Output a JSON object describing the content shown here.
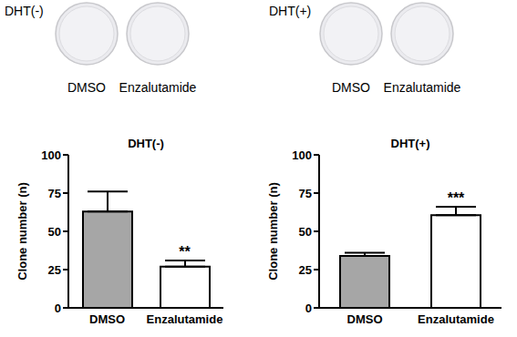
{
  "images": [
    {
      "label": "DHT(-)",
      "dishes": [
        "DMSO",
        "Enzalutamide"
      ]
    },
    {
      "label": "DHT(+)",
      "dishes": [
        "DMSO",
        "Enzalutamide"
      ]
    }
  ],
  "chart_data": [
    {
      "type": "bar",
      "title": "DHT(-)",
      "y_label": "Clone number (n)",
      "categories": [
        "DMSO",
        "Enzalutamide"
      ],
      "values": [
        63,
        27
      ],
      "error": [
        13,
        4
      ],
      "colors": [
        "#a6a6a6",
        "#ffffff"
      ],
      "ylim": [
        0,
        100
      ],
      "yticks": [
        0,
        25,
        50,
        75,
        100
      ],
      "annotations": [
        {
          "category": "Enzalutamide",
          "text": "**"
        }
      ]
    },
    {
      "type": "bar",
      "title": "DHT(+)",
      "y_label": "Clone number (n)",
      "categories": [
        "DMSO",
        "Enzalutamide"
      ],
      "values": [
        34,
        60.5
      ],
      "error": [
        2,
        5.5
      ],
      "colors": [
        "#a6a6a6",
        "#ffffff"
      ],
      "ylim": [
        0,
        100
      ],
      "yticks": [
        0,
        25,
        50,
        75,
        100
      ],
      "annotations": [
        {
          "category": "Enzalutamide",
          "text": "***"
        }
      ]
    }
  ]
}
